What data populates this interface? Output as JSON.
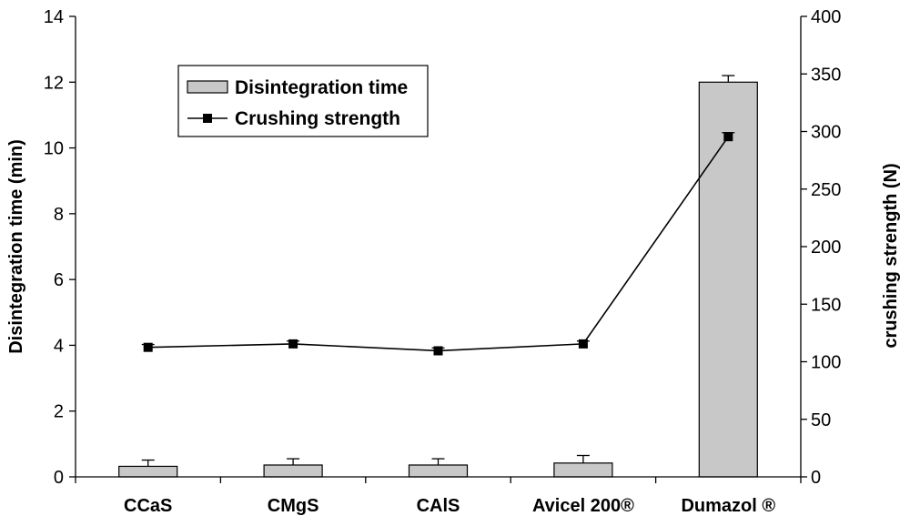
{
  "chart_data": {
    "type": "bar+line",
    "categories": [
      "CCaS",
      "CMgS",
      "CAlS",
      "Avicel 200®",
      "Dumazol ®"
    ],
    "series": [
      {
        "name": "Disintegration time",
        "kind": "bar",
        "axis": "left",
        "values": [
          0.32,
          0.36,
          0.36,
          0.42,
          12.0
        ],
        "errors": [
          0.19,
          0.19,
          0.19,
          0.23,
          0.2
        ],
        "color": "#c8c8c8"
      },
      {
        "name": "Crushing strength",
        "kind": "line",
        "axis": "right",
        "values": [
          112.5,
          115.5,
          109.5,
          115.5,
          295.5
        ],
        "errors": [
          2.5,
          2.5,
          2.5,
          2.5,
          3.5
        ],
        "color": "#000000"
      }
    ],
    "ylabel_left": "Disintegration time (min)",
    "ylabel_right": "crushing strength (N)",
    "ylim_left": [
      0,
      14
    ],
    "ylim_right": [
      0,
      400
    ],
    "yticks_left": [
      "0",
      "2",
      "4",
      "6",
      "8",
      "10",
      "12",
      "14"
    ],
    "yticks_right": [
      "0",
      "50",
      "100",
      "150",
      "200",
      "250",
      "300",
      "350",
      "400"
    ],
    "legend": {
      "position": "top-left",
      "entries": [
        "Disintegration time",
        "Crushing strength"
      ]
    },
    "grid": false
  }
}
